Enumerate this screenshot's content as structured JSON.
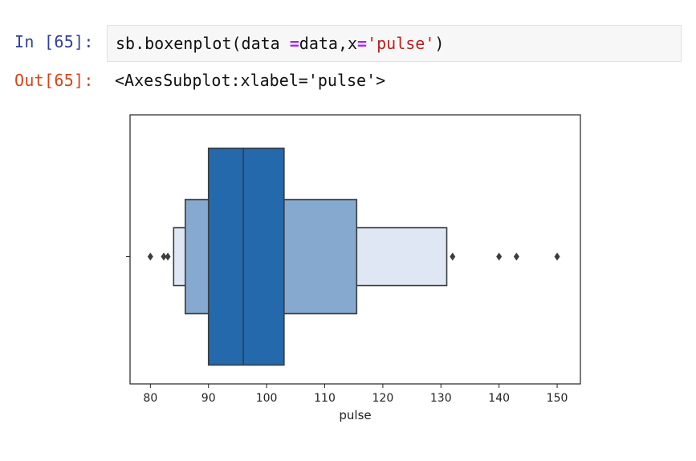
{
  "cell": {
    "in_prompt": "In [65]:",
    "out_prompt": "Out[65]:",
    "code": {
      "p1": "sb.boxenplot(data ",
      "op": "=",
      "p2": "data,x",
      "op2": "=",
      "str": "'pulse'",
      "p3": ")"
    },
    "output": "<AxesSubplot:xlabel='pulse'>"
  },
  "chart_data": {
    "type": "boxen",
    "xlabel": "pulse",
    "xlim": [
      76.5,
      154
    ],
    "xticks": [
      80,
      90,
      100,
      110,
      120,
      130,
      140,
      150
    ],
    "median": 96,
    "boxes": [
      {
        "low": 90,
        "high": 103,
        "level": 1,
        "color": "#2369ac"
      },
      {
        "low": 86,
        "high": 115.5,
        "level": 2,
        "color": "#86a9d0"
      },
      {
        "low": 84,
        "high": 131,
        "level": 3,
        "color": "#dfe7f4"
      }
    ],
    "outliers": [
      80,
      82.3,
      83,
      132,
      140,
      143,
      150
    ]
  }
}
